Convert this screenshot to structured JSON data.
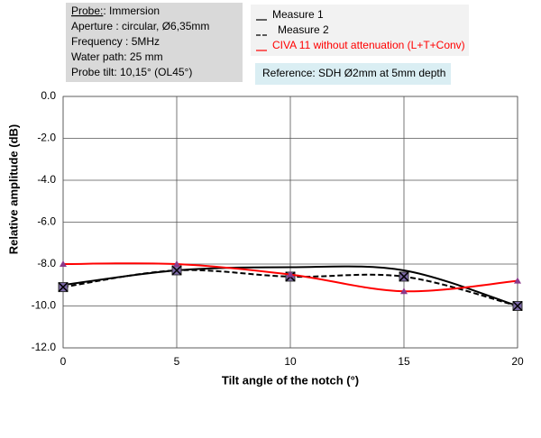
{
  "chart_data": {
    "type": "line",
    "x_label": "Tilt angle of the notch (°)",
    "y_label": "Relative amplitude (dB)",
    "x": [
      0,
      5,
      10,
      15,
      20
    ],
    "series": [
      {
        "name": "Measure  1",
        "color": "#000000",
        "line_style": "solid",
        "marker": "none",
        "values": [
          -9.0,
          -8.3,
          -8.15,
          -8.3,
          -10.0
        ]
      },
      {
        "name": "Measure 2",
        "color": "#000000",
        "line_style": "dashed",
        "marker": "x-square",
        "values": [
          -9.1,
          -8.3,
          -8.6,
          -8.6,
          -10.0
        ]
      },
      {
        "name": "CIVA 11 without attenuation (L+T+Conv)",
        "color": "#ff0000",
        "line_style": "solid",
        "marker": "triangle",
        "values": [
          -8.0,
          -8.0,
          -8.5,
          -9.3,
          -8.8
        ]
      }
    ],
    "xlim": [
      0,
      20
    ],
    "xticks": [
      0,
      5,
      10,
      15,
      20
    ],
    "ylim": [
      -12,
      0
    ],
    "yticks": [
      {
        "value": 0,
        "label": "0.0"
      },
      {
        "value": -2,
        "label": "-2.0"
      },
      {
        "value": -4,
        "label": "-4.0"
      },
      {
        "value": -6,
        "label": "-6.0"
      },
      {
        "value": -8,
        "label": "-8.0"
      },
      {
        "value": -10,
        "label": "-10.0"
      },
      {
        "value": -12,
        "label": "-12.0"
      }
    ],
    "grid": true,
    "probe_label": "Probe:",
    "info_lines": [
      ": Immersion",
      "Aperture : circular, Ø6,35mm",
      "Frequency : 5MHz",
      "Water path: 25 mm",
      "Probe tilt: 10,15° (OL45°)"
    ],
    "reference": "Reference: SDH Ø2mm at 5mm depth"
  }
}
